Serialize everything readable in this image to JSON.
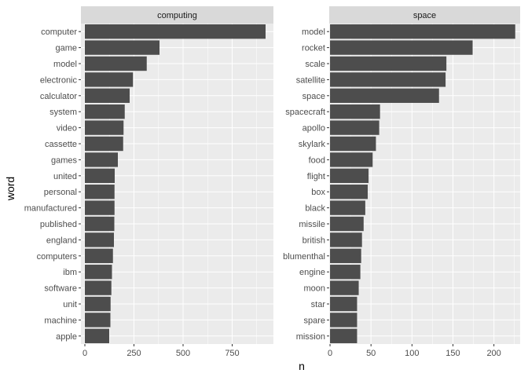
{
  "chart_data": {
    "type": "bar",
    "orientation": "horizontal",
    "xlabel": "n",
    "ylabel": "word",
    "grid": true,
    "colors": {
      "bar": "#4d4d4d",
      "panel_bg": "#ebebeb",
      "strip_bg": "#d9d9d9",
      "grid_major": "#ffffff",
      "tick_text": "#4d4d4d"
    },
    "panels": [
      {
        "facet": "computing",
        "xlim": [
          -20,
          960
        ],
        "x_ticks": [
          0,
          250,
          500,
          750
        ],
        "categories": [
          "computer",
          "game",
          "model",
          "electronic",
          "calculator",
          "system",
          "video",
          "cassette",
          "games",
          "united",
          "personal",
          "manufactured",
          "published",
          "england",
          "computers",
          "ibm",
          "software",
          "unit",
          "machine",
          "apple"
        ],
        "values": [
          920,
          380,
          315,
          245,
          228,
          203,
          197,
          195,
          168,
          152,
          151,
          151,
          150,
          148,
          143,
          138,
          135,
          131,
          130,
          124
        ]
      },
      {
        "facet": "space",
        "xlim": [
          -1,
          232
        ],
        "x_ticks": [
          0,
          50,
          100,
          150,
          200
        ],
        "categories": [
          "model",
          "rocket",
          "scale",
          "satellite",
          "space",
          "spacecraft",
          "apollo",
          "skylark",
          "food",
          "flight",
          "box",
          "black",
          "missile",
          "british",
          "blumenthal",
          "engine",
          "moon",
          "star",
          "spare",
          "mission"
        ],
        "values": [
          226,
          174,
          142,
          141,
          133,
          61,
          60,
          56,
          52,
          47,
          46,
          43,
          41,
          39,
          38,
          37,
          35,
          33,
          33,
          33
        ]
      }
    ]
  }
}
